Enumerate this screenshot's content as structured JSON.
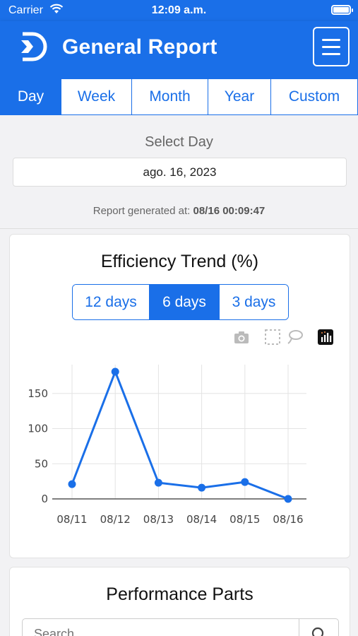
{
  "status_bar": {
    "carrier": "Carrier",
    "time": "12:09 a.m."
  },
  "header": {
    "title": "General Report"
  },
  "tabs": [
    {
      "label": "Day",
      "active": true
    },
    {
      "label": "Week",
      "active": false
    },
    {
      "label": "Month",
      "active": false
    },
    {
      "label": "Year",
      "active": false
    },
    {
      "label": "Custom",
      "active": false
    }
  ],
  "day_selector": {
    "label": "Select Day",
    "value": "ago. 16, 2023"
  },
  "report": {
    "generated_label": "Report generated at:",
    "generated_value": "08/16 00:09:47"
  },
  "efficiency_card": {
    "title": "Efficiency Trend (%)",
    "ranges": [
      {
        "label": "12 days",
        "active": false
      },
      {
        "label": "6 days",
        "active": true
      },
      {
        "label": "3 days",
        "active": false
      }
    ]
  },
  "chart_data": {
    "type": "line",
    "title": "Efficiency Trend (%)",
    "categories": [
      "08/11",
      "08/12",
      "08/13",
      "08/14",
      "08/15",
      "08/16"
    ],
    "values": [
      21,
      181,
      23,
      16,
      24,
      0
    ],
    "ylim": [
      0,
      185
    ],
    "yticks": [
      0,
      50,
      100,
      150
    ],
    "grid": true,
    "color": "#1a6fe8"
  },
  "parts_card": {
    "title": "Performance Parts",
    "search_placeholder": "Search"
  },
  "colors": {
    "primary": "#1a6fe8",
    "background": "#f2f2f4"
  }
}
